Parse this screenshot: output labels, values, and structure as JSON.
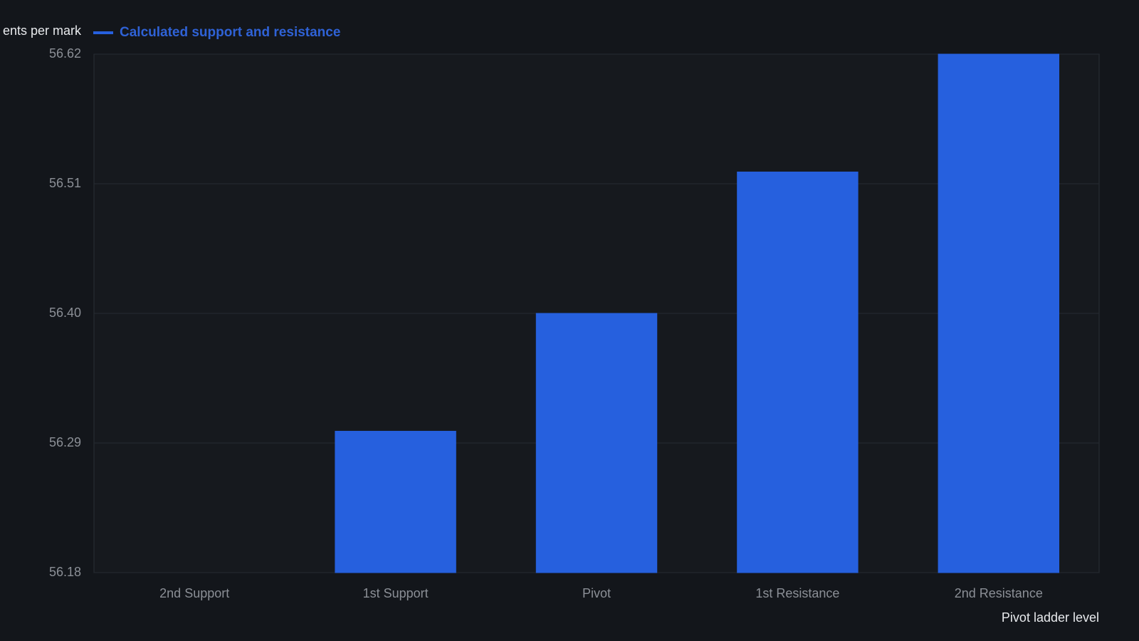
{
  "chart_data": {
    "type": "bar",
    "y_label": "ents per mark",
    "x_label": "Pivot ladder level",
    "categories": [
      "2nd Support",
      "1st Support",
      "Pivot",
      "1st Resistance",
      "2nd Resistance"
    ],
    "series": [
      {
        "name": "Calculated support and resistance",
        "color": "#2660de",
        "values": [
          56.18,
          56.3,
          56.4,
          56.52,
          56.62
        ]
      }
    ],
    "ylim": [
      56.18,
      56.62
    ],
    "yticks": [
      56.18,
      56.29,
      {
        "value": 56.4,
        "label": "56.40"
      },
      56.51,
      56.62
    ],
    "grid": true
  }
}
